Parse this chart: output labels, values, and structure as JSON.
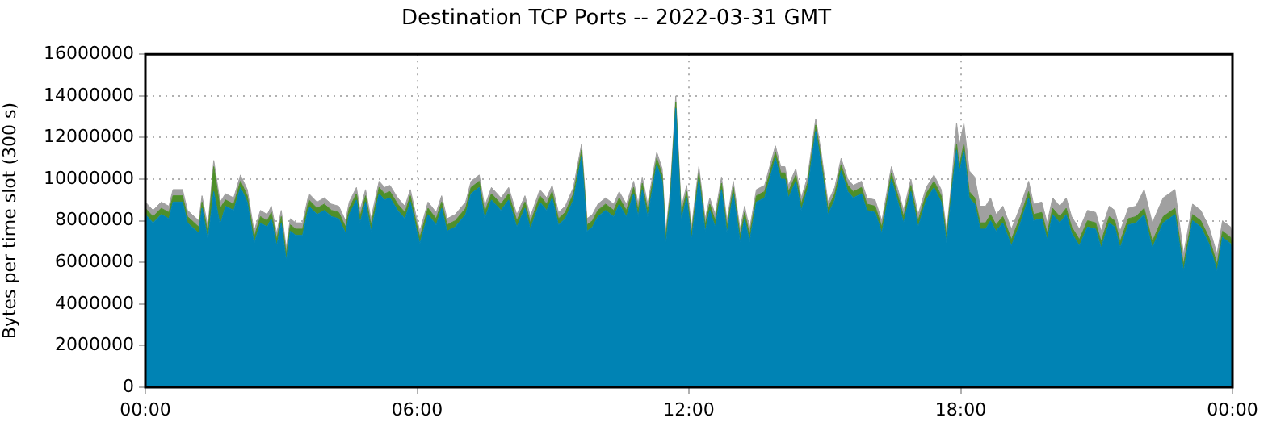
{
  "chart_data": {
    "type": "area",
    "stacked": true,
    "title": "Destination TCP Ports -- 2022-03-31 GMT",
    "ylabel": "Bytes per time slot (300 s)",
    "x": [
      0,
      0.17,
      0.35,
      0.52,
      0.61,
      0.82,
      0.93,
      1.18,
      1.25,
      1.38,
      1.51,
      1.65,
      1.77,
      1.95,
      2.1,
      2.25,
      2.4,
      2.54,
      2.69,
      2.78,
      2.9,
      3.0,
      3.11,
      3.2,
      3.32,
      3.47,
      3.61,
      3.79,
      3.95,
      4.11,
      4.27,
      4.42,
      4.5,
      4.66,
      4.74,
      4.86,
      4.98,
      5.16,
      5.28,
      5.4,
      5.57,
      5.73,
      5.85,
      5.99,
      6.06,
      6.24,
      6.42,
      6.54,
      6.66,
      6.84,
      7.07,
      7.19,
      7.37,
      7.49,
      7.64,
      7.85,
      8.02,
      8.2,
      8.38,
      8.5,
      8.71,
      8.86,
      8.98,
      9.12,
      9.27,
      9.45,
      9.63,
      9.75,
      9.87,
      9.99,
      10.16,
      10.34,
      10.46,
      10.62,
      10.78,
      10.88,
      10.97,
      11.09,
      11.29,
      11.41,
      11.49,
      11.59,
      11.71,
      11.83,
      11.95,
      12.06,
      12.22,
      12.36,
      12.46,
      12.58,
      12.72,
      12.84,
      12.98,
      13.13,
      13.23,
      13.34,
      13.49,
      13.67,
      13.91,
      14.03,
      14.12,
      14.2,
      14.36,
      14.48,
      14.62,
      14.8,
      14.92,
      15.07,
      15.22,
      15.36,
      15.51,
      15.63,
      15.81,
      15.93,
      16.11,
      16.26,
      16.47,
      16.64,
      16.74,
      16.9,
      17.06,
      17.24,
      17.41,
      17.57,
      17.69,
      17.81,
      17.91,
      17.97,
      18.07,
      18.19,
      18.31,
      18.43,
      18.55,
      18.66,
      18.78,
      18.93,
      19.12,
      19.32,
      19.5,
      19.61,
      19.79,
      19.91,
      20.03,
      20.19,
      20.33,
      20.45,
      20.62,
      20.8,
      20.98,
      21.1,
      21.28,
      21.4,
      21.52,
      21.7,
      21.87,
      22.05,
      22.23,
      22.47,
      22.73,
      22.92,
      23.12,
      23.3,
      23.48,
      23.66,
      23.78,
      23.96,
      24.0
    ],
    "series": [
      {
        "color": "#0083b4",
        "values": [
          8300000,
          7900000,
          8300000,
          8100000,
          8900000,
          8900000,
          7900000,
          7400000,
          8600000,
          7100000,
          9400000,
          7800000,
          8700000,
          8500000,
          9600000,
          8900000,
          6900000,
          7900000,
          7700000,
          8100000,
          6800000,
          7900000,
          6100000,
          7500000,
          7300000,
          7300000,
          8700000,
          8300000,
          8500000,
          8200000,
          8100000,
          7400000,
          8300000,
          9000000,
          7900000,
          8900000,
          7500000,
          9300000,
          9000000,
          9100000,
          8500000,
          8100000,
          8900000,
          7500000,
          6900000,
          8300000,
          7800000,
          8600000,
          7500000,
          7700000,
          8300000,
          9300000,
          9600000,
          8100000,
          9000000,
          8500000,
          9000000,
          7700000,
          8600000,
          7600000,
          8900000,
          8500000,
          9100000,
          7800000,
          8100000,
          9000000,
          11100000,
          7500000,
          7700000,
          8200000,
          8500000,
          8200000,
          8800000,
          8200000,
          9300000,
          8200000,
          9500000,
          8200000,
          10700000,
          9900000,
          6900000,
          8900000,
          13400000,
          8000000,
          9100000,
          7100000,
          10000000,
          7500000,
          8500000,
          7700000,
          9500000,
          7400000,
          9300000,
          7000000,
          8100000,
          7000000,
          8900000,
          9100000,
          11000000,
          10000000,
          10000000,
          9100000,
          9900000,
          8500000,
          9500000,
          12300000,
          10700000,
          8300000,
          9000000,
          10400000,
          9400000,
          9100000,
          9300000,
          8500000,
          8400000,
          7400000,
          10000000,
          8700000,
          7900000,
          9400000,
          7700000,
          9000000,
          9600000,
          8900000,
          6900000,
          9500000,
          11400000,
          10300000,
          11400000,
          9100000,
          8800000,
          7600000,
          7600000,
          8000000,
          7500000,
          7900000,
          6800000,
          7900000,
          9100000,
          8000000,
          8100000,
          7100000,
          8300000,
          7900000,
          8300000,
          7400000,
          6800000,
          7700000,
          7600000,
          6700000,
          7900000,
          7700000,
          6700000,
          7800000,
          7900000,
          8300000,
          6700000,
          7900000,
          8300000,
          5600000,
          8000000,
          7700000,
          6900000,
          5600000,
          7200000,
          6900000,
          6200000
        ]
      },
      {
        "color": "#4e8f2a",
        "values": [
          300000,
          300000,
          300000,
          300000,
          300000,
          300000,
          300000,
          300000,
          300000,
          300000,
          1200000,
          800000,
          300000,
          300000,
          300000,
          300000,
          300000,
          300000,
          300000,
          300000,
          300000,
          300000,
          300000,
          300000,
          300000,
          300000,
          300000,
          300000,
          300000,
          300000,
          300000,
          300000,
          300000,
          300000,
          300000,
          300000,
          300000,
          300000,
          300000,
          300000,
          300000,
          300000,
          300000,
          300000,
          300000,
          300000,
          300000,
          300000,
          300000,
          300000,
          300000,
          300000,
          300000,
          300000,
          300000,
          300000,
          300000,
          300000,
          300000,
          300000,
          300000,
          300000,
          300000,
          300000,
          300000,
          300000,
          300000,
          300000,
          300000,
          300000,
          300000,
          300000,
          300000,
          300000,
          300000,
          300000,
          300000,
          300000,
          300000,
          300000,
          300000,
          300000,
          300000,
          300000,
          300000,
          300000,
          300000,
          300000,
          300000,
          300000,
          300000,
          300000,
          300000,
          300000,
          300000,
          300000,
          300000,
          300000,
          300000,
          300000,
          300000,
          300000,
          300000,
          300000,
          300000,
          300000,
          300000,
          300000,
          300000,
          300000,
          300000,
          300000,
          300000,
          300000,
          300000,
          300000,
          300000,
          300000,
          300000,
          300000,
          300000,
          300000,
          300000,
          300000,
          300000,
          300000,
          300000,
          300000,
          300000,
          300000,
          300000,
          300000,
          300000,
          300000,
          300000,
          300000,
          300000,
          300000,
          300000,
          300000,
          300000,
          300000,
          300000,
          300000,
          300000,
          300000,
          300000,
          300000,
          300000,
          300000,
          300000,
          300000,
          300000,
          300000,
          300000,
          300000,
          300000,
          300000,
          300000,
          300000,
          300000,
          300000,
          300000,
          300000,
          300000,
          300000,
          300000
        ]
      },
      {
        "color": "#a0a0a0",
        "values": [
          300000,
          300000,
          300000,
          300000,
          300000,
          300000,
          300000,
          300000,
          300000,
          300000,
          300000,
          300000,
          300000,
          300000,
          300000,
          300000,
          300000,
          300000,
          300000,
          300000,
          300000,
          300000,
          300000,
          300000,
          300000,
          300000,
          300000,
          300000,
          300000,
          300000,
          300000,
          300000,
          300000,
          300000,
          300000,
          300000,
          300000,
          300000,
          300000,
          300000,
          300000,
          300000,
          300000,
          300000,
          300000,
          300000,
          300000,
          300000,
          300000,
          300000,
          300000,
          300000,
          300000,
          300000,
          300000,
          300000,
          300000,
          300000,
          300000,
          300000,
          300000,
          300000,
          300000,
          300000,
          300000,
          300000,
          300000,
          300000,
          300000,
          300000,
          300000,
          300000,
          300000,
          300000,
          300000,
          300000,
          300000,
          300000,
          300000,
          300000,
          300000,
          300000,
          300000,
          300000,
          300000,
          300000,
          300000,
          300000,
          300000,
          300000,
          300000,
          300000,
          300000,
          300000,
          300000,
          300000,
          300000,
          300000,
          300000,
          300000,
          300000,
          300000,
          300000,
          300000,
          300000,
          300000,
          300000,
          300000,
          300000,
          300000,
          300000,
          300000,
          300000,
          300000,
          300000,
          300000,
          300000,
          300000,
          300000,
          300000,
          300000,
          300000,
          300000,
          300000,
          300000,
          300000,
          1000000,
          1000000,
          1000000,
          1000000,
          1000000,
          800000,
          800000,
          800000,
          500000,
          500000,
          500000,
          500000,
          500000,
          500000,
          500000,
          500000,
          500000,
          500000,
          500000,
          500000,
          500000,
          500000,
          500000,
          500000,
          500000,
          500000,
          500000,
          500000,
          500000,
          900000,
          900000,
          900000,
          900000,
          500000,
          500000,
          500000,
          500000,
          500000,
          500000,
          500000,
          500000
        ]
      }
    ],
    "xlim": [
      0,
      24
    ],
    "xticks": [
      {
        "value": 0,
        "label": "00:00"
      },
      {
        "value": 6,
        "label": "06:00"
      },
      {
        "value": 12,
        "label": "12:00"
      },
      {
        "value": 18,
        "label": "18:00"
      },
      {
        "value": 24,
        "label": "00:00"
      }
    ],
    "ylim": [
      0,
      16000000
    ],
    "yticks": [
      0,
      2000000,
      4000000,
      6000000,
      8000000,
      10000000,
      12000000,
      14000000,
      16000000
    ],
    "grid": true,
    "legend": false
  }
}
